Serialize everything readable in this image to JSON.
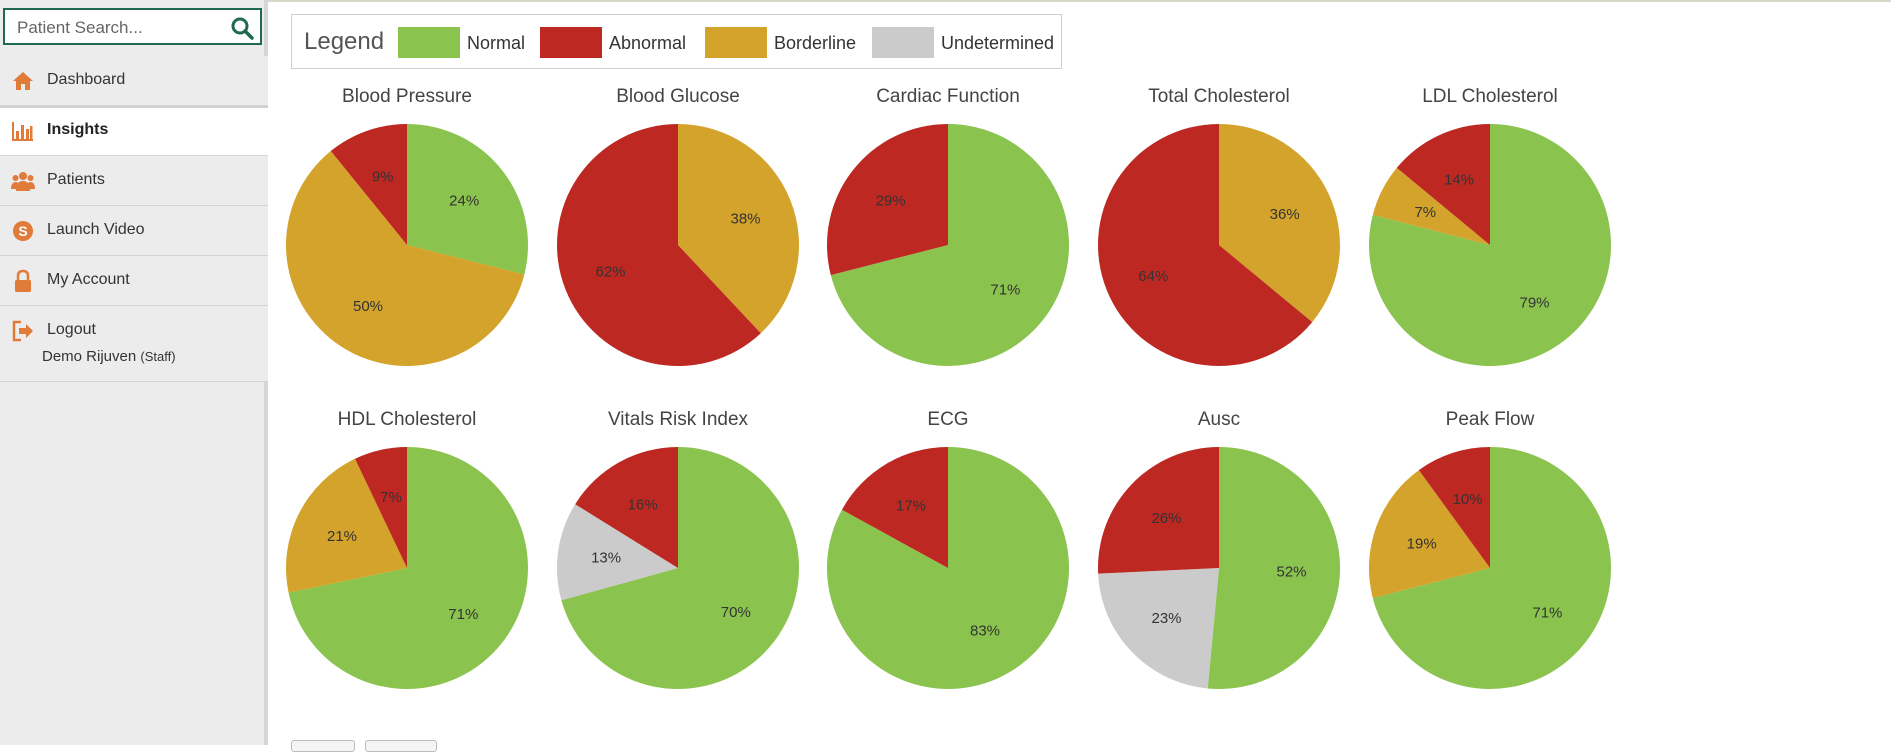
{
  "search": {
    "placeholder": "Patient Search..."
  },
  "nav": [
    {
      "label": "Dashboard",
      "icon": "home-icon"
    },
    {
      "label": "Insights",
      "icon": "bar-chart-icon",
      "active": true
    },
    {
      "label": "Patients",
      "icon": "users-icon"
    },
    {
      "label": "Launch Video",
      "icon": "skype-icon"
    },
    {
      "label": "My Account",
      "icon": "lock-icon"
    },
    {
      "label": "Logout",
      "icon": "sign-out-icon"
    }
  ],
  "user": {
    "name": "Demo Rijuven",
    "role": "(Staff)"
  },
  "legend": {
    "title": "Legend",
    "items": [
      {
        "label": "Normal",
        "color": "#8bc34f"
      },
      {
        "label": "Abnormal",
        "color": "#bd2822"
      },
      {
        "label": "Borderline",
        "color": "#d4a32b"
      },
      {
        "label": "Undetermined",
        "color": "#cbcbcb"
      }
    ]
  },
  "chart_data": [
    {
      "type": "pie",
      "title": "Blood Pressure",
      "slices": [
        {
          "category": "Normal",
          "value": 24,
          "label": "24%"
        },
        {
          "category": "Borderline",
          "value": 50,
          "label": "50%"
        },
        {
          "category": "Abnormal",
          "value": 9,
          "label": "9%"
        }
      ]
    },
    {
      "type": "pie",
      "title": "Blood Glucose",
      "slices": [
        {
          "category": "Borderline",
          "value": 38,
          "label": "38%"
        },
        {
          "category": "Abnormal",
          "value": 62,
          "label": "62%"
        }
      ]
    },
    {
      "type": "pie",
      "title": "Cardiac Function",
      "slices": [
        {
          "category": "Normal",
          "value": 71,
          "label": "71%"
        },
        {
          "category": "Abnormal",
          "value": 29,
          "label": "29%"
        }
      ]
    },
    {
      "type": "pie",
      "title": "Total Cholesterol",
      "slices": [
        {
          "category": "Borderline",
          "value": 36,
          "label": "36%"
        },
        {
          "category": "Abnormal",
          "value": 64,
          "label": "64%"
        }
      ]
    },
    {
      "type": "pie",
      "title": "LDL Cholesterol",
      "slices": [
        {
          "category": "Normal",
          "value": 79,
          "label": "79%"
        },
        {
          "category": "Borderline",
          "value": 7,
          "label": "7%"
        },
        {
          "category": "Abnormal",
          "value": 14,
          "label": "14%"
        }
      ]
    },
    {
      "type": "pie",
      "title": "HDL Cholesterol",
      "slices": [
        {
          "category": "Normal",
          "value": 71,
          "label": "71%"
        },
        {
          "category": "Borderline",
          "value": 21,
          "label": "21%"
        },
        {
          "category": "Abnormal",
          "value": 7,
          "label": "7%"
        }
      ]
    },
    {
      "type": "pie",
      "title": "Vitals Risk Index",
      "slices": [
        {
          "category": "Normal",
          "value": 70,
          "label": "70%"
        },
        {
          "category": "Undetermined",
          "value": 13,
          "label": "13%"
        },
        {
          "category": "Abnormal",
          "value": 16,
          "label": "16%"
        }
      ]
    },
    {
      "type": "pie",
      "title": "ECG",
      "slices": [
        {
          "category": "Normal",
          "value": 83,
          "label": "83%"
        },
        {
          "category": "Abnormal",
          "value": 17,
          "label": "17%"
        }
      ]
    },
    {
      "type": "pie",
      "title": "Ausc",
      "slices": [
        {
          "category": "Normal",
          "value": 52,
          "label": "52%"
        },
        {
          "category": "Undetermined",
          "value": 23,
          "label": "23%"
        },
        {
          "category": "Abnormal",
          "value": 26,
          "label": "26%"
        }
      ]
    },
    {
      "type": "pie",
      "title": "Peak Flow",
      "slices": [
        {
          "category": "Normal",
          "value": 71,
          "label": "71%"
        },
        {
          "category": "Borderline",
          "value": 19,
          "label": "19%"
        },
        {
          "category": "Abnormal",
          "value": 10,
          "label": "10%"
        }
      ]
    }
  ]
}
